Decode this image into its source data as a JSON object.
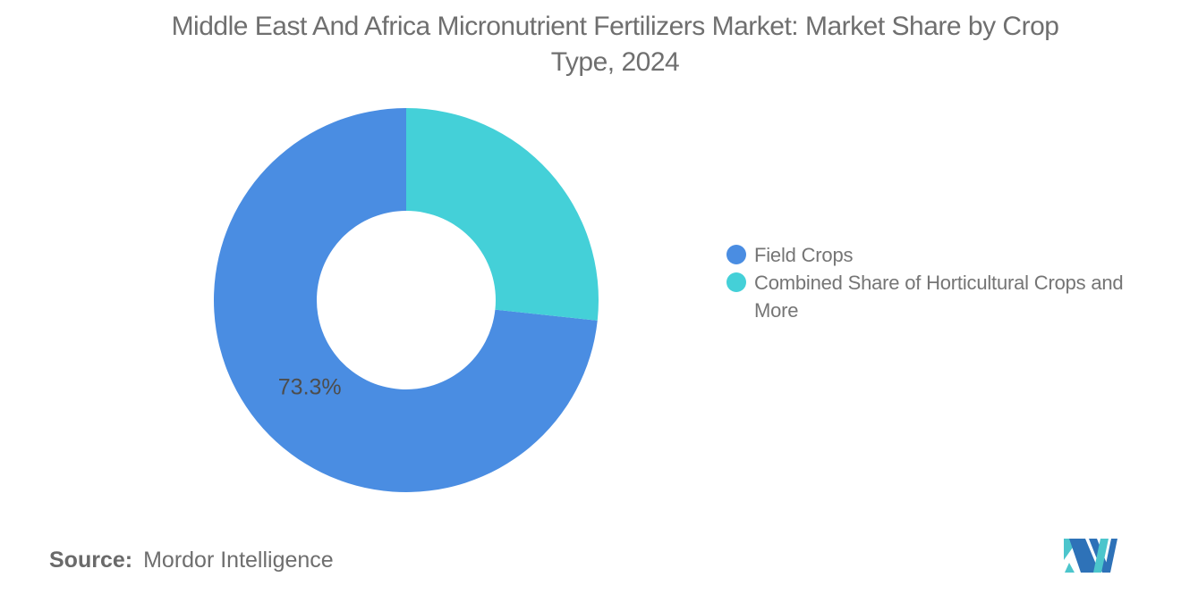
{
  "title": {
    "text": "Middle East And Africa Micronutrient Fertilizers Market: Market Share by Crop Type, 2024",
    "lines": [
      "Middle East And Africa Micronutrient Fertilizers Market: Market Share by Crop",
      "Type, 2024"
    ],
    "color": "#6f6f6f"
  },
  "chart_data": {
    "type": "pie",
    "subtype": "donut",
    "title": "Middle East And Africa Micronutrient Fertilizers Market: Market Share by Crop Type, 2024",
    "categories": [
      "Field Crops",
      "Combined Share of Horticultural Crops and More"
    ],
    "values": [
      73.3,
      26.7
    ],
    "unit": "%",
    "colors": [
      "#4A8DE2",
      "#44D0D8"
    ],
    "slice_labels": [
      "73.3%",
      ""
    ],
    "slice_label_color": "#4d4d4d",
    "start_angle_deg": 0,
    "direction": "counterclockwise",
    "inner_radius_ratio": 0.465,
    "legend_position": "right",
    "grid": false
  },
  "legend": {
    "text_color": "#757575",
    "items": [
      {
        "label": "Field Crops",
        "lines": [
          "Field Crops"
        ],
        "color": "#4A8DE2"
      },
      {
        "label": "Combined Share of Horticultural Crops and More",
        "lines": [
          "Combined Share of Horticultural Crops and",
          "More"
        ],
        "color": "#44D0D8"
      }
    ]
  },
  "source": {
    "label": "Source:",
    "value": "Mordor Intelligence"
  },
  "logo": {
    "name": "mordor-intelligence-logo",
    "blue": "#2E72B8",
    "teal": "#4CC5CC"
  }
}
